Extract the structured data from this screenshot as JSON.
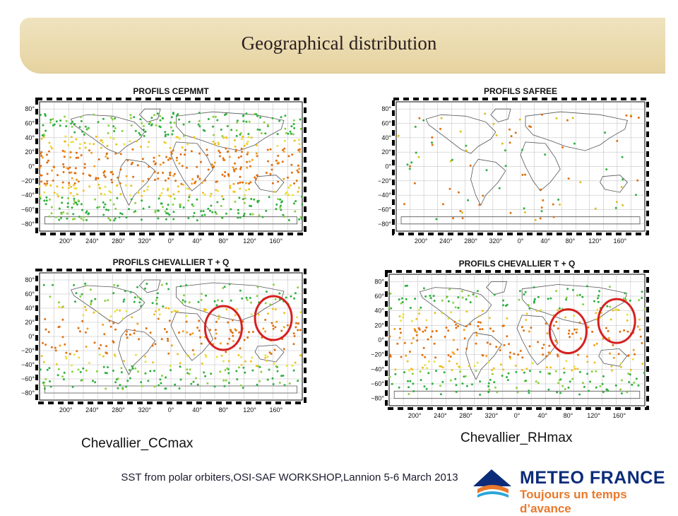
{
  "slide": {
    "title": "Geographical distribution",
    "footer": "SST from polar orbiters,OSI-SAF WORKSHOP,Lannion 5-6 March 2013",
    "logo": {
      "brand": "METEO FRANCE",
      "tagline": "Toujours un temps d’avance"
    },
    "colors": {
      "header": "#ebdcb0",
      "highlight_circle": "#d62020"
    }
  },
  "maps": [
    {
      "id": "cepmmt",
      "title": "PROFILS CEPMMT",
      "caption": "",
      "y_ticks": [
        "80°",
        "60°",
        "40°",
        "20°",
        "0°",
        "−20°",
        "−40°",
        "−60°",
        "−80°"
      ],
      "x_ticks": [
        "200°",
        "240°",
        "280°",
        "320°",
        "0°",
        "40°",
        "80°",
        "120°",
        "160°"
      ],
      "circles": 0,
      "density": "high"
    },
    {
      "id": "safree",
      "title": "PROFILS SAFREE",
      "caption": "",
      "y_ticks": [
        "80°",
        "60°",
        "40°",
        "20°",
        "0°",
        "−20°",
        "−40°",
        "−60°",
        "−80°"
      ],
      "x_ticks": [
        "200°",
        "240°",
        "280°",
        "320°",
        "0°",
        "40°",
        "80°",
        "120°",
        "160°"
      ],
      "circles": 0,
      "density": "low"
    },
    {
      "id": "ccmax",
      "title": "PROFILS CHEVALLIER T + Q",
      "caption": "Chevallier_CCmax",
      "y_ticks": [
        "80°",
        "60°",
        "40°",
        "20°",
        "0°",
        "−20°",
        "−40°",
        "−60°",
        "−80°"
      ],
      "x_ticks": [
        "200°",
        "240°",
        "280°",
        "320°",
        "0°",
        "40°",
        "80°",
        "120°",
        "160°"
      ],
      "circles": 2,
      "density": "medium"
    },
    {
      "id": "rhmax",
      "title": "PROFILS CHEVALLIER T + Q",
      "caption": "Chevallier_RHmax",
      "y_ticks": [
        "80°",
        "60°",
        "40°",
        "20°",
        "0°",
        "−20°",
        "−40°",
        "−60°",
        "−80°"
      ],
      "x_ticks": [
        "200°",
        "240°",
        "280°",
        "320°",
        "0°",
        "40°",
        "80°",
        "120°",
        "160°"
      ],
      "circles": 2,
      "density": "medium"
    }
  ]
}
